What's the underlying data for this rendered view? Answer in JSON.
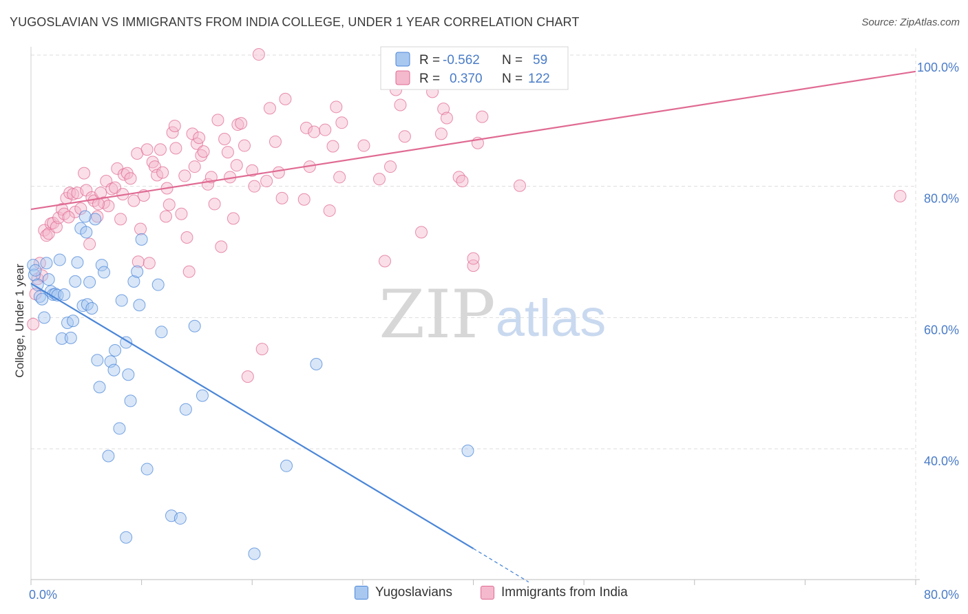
{
  "header": {
    "title": "YUGOSLAVIAN VS IMMIGRANTS FROM INDIA COLLEGE, UNDER 1 YEAR CORRELATION CHART",
    "source": "Source: ZipAtlas.com"
  },
  "watermark": {
    "zip": "ZIP",
    "atlas": "atlas"
  },
  "colors": {
    "blue": "#4a86d8",
    "blue_fill": "#a9c8f0",
    "pink": "#e06a93",
    "pink_fill": "#f4b9cc",
    "axis_text": "#4a7cc7",
    "grid": "#dddddd"
  },
  "legend_top": {
    "rows": [
      {
        "r_label": "R =",
        "r_value": "-0.562",
        "n_label": "N =",
        "n_value": "59"
      },
      {
        "r_label": "R =",
        "r_value": "0.370",
        "n_label": "N =",
        "n_value": "122"
      }
    ]
  },
  "legend_bottom": [
    {
      "label": "Yugoslavians"
    },
    {
      "label": "Immigrants from India"
    }
  ],
  "chart_data": {
    "type": "scatter",
    "title": "YUGOSLAVIAN VS IMMIGRANTS FROM INDIA COLLEGE, UNDER 1 YEAR CORRELATION CHART",
    "xlabel": "",
    "ylabel": "College, Under 1 year",
    "xlim": [
      0,
      80
    ],
    "ylim": [
      20,
      102
    ],
    "x_tick_labels": [
      {
        "value": 0,
        "label": "0.0%"
      },
      {
        "value": 80,
        "label": "80.0%"
      }
    ],
    "y_tick_labels": [
      {
        "value": 40,
        "label": "40.0%"
      },
      {
        "value": 60,
        "label": "60.0%"
      },
      {
        "value": 80,
        "label": "80.0%"
      },
      {
        "value": 100,
        "label": "100.0%"
      }
    ],
    "legend_position": "top-center",
    "grid": true,
    "series": [
      {
        "name": "Yugoslavians",
        "color": "#4a86d8",
        "r": -0.562,
        "n": 59,
        "trend": {
          "x0": 0,
          "y0": 65.2,
          "x1": 40,
          "y1": 24.8,
          "dashed_to_x": 45,
          "dashed_to_y": 19.7
        },
        "points": [
          [
            0.2,
            68.0
          ],
          [
            0.3,
            66.5
          ],
          [
            0.4,
            67.2
          ],
          [
            0.6,
            65.0
          ],
          [
            0.8,
            63.2
          ],
          [
            1.0,
            62.8
          ],
          [
            1.2,
            60.0
          ],
          [
            1.4,
            68.3
          ],
          [
            1.6,
            65.8
          ],
          [
            1.8,
            64.0
          ],
          [
            2.0,
            63.5
          ],
          [
            2.2,
            63.6
          ],
          [
            2.4,
            63.4
          ],
          [
            2.6,
            68.8
          ],
          [
            2.8,
            56.8
          ],
          [
            3.0,
            63.5
          ],
          [
            3.3,
            59.2
          ],
          [
            3.6,
            56.9
          ],
          [
            3.8,
            59.5
          ],
          [
            4.0,
            65.5
          ],
          [
            4.2,
            68.4
          ],
          [
            4.5,
            73.6
          ],
          [
            4.7,
            61.8
          ],
          [
            5.0,
            73.0
          ],
          [
            5.1,
            62.0
          ],
          [
            5.3,
            65.4
          ],
          [
            5.5,
            61.4
          ],
          [
            5.8,
            75.0
          ],
          [
            6.0,
            53.5
          ],
          [
            6.2,
            49.4
          ],
          [
            6.4,
            68.0
          ],
          [
            6.6,
            66.9
          ],
          [
            7.0,
            38.9
          ],
          [
            7.2,
            53.3
          ],
          [
            7.5,
            52.0
          ],
          [
            7.6,
            55.0
          ],
          [
            8.0,
            43.1
          ],
          [
            8.2,
            62.6
          ],
          [
            8.6,
            56.2
          ],
          [
            8.8,
            51.3
          ],
          [
            9.0,
            47.3
          ],
          [
            9.3,
            65.5
          ],
          [
            9.6,
            67.0
          ],
          [
            9.8,
            61.9
          ],
          [
            10.0,
            71.9
          ],
          [
            10.5,
            36.9
          ],
          [
            11.5,
            65.0
          ],
          [
            11.8,
            57.8
          ],
          [
            12.7,
            29.8
          ],
          [
            13.5,
            29.4
          ],
          [
            14.0,
            46.0
          ],
          [
            14.8,
            58.7
          ],
          [
            15.5,
            48.1
          ],
          [
            20.2,
            24.0
          ],
          [
            23.1,
            37.4
          ],
          [
            25.8,
            52.9
          ],
          [
            39.5,
            39.7
          ],
          [
            8.6,
            26.5
          ],
          [
            4.9,
            75.4
          ]
        ]
      },
      {
        "name": "Immigrants from India",
        "color": "#e06a93",
        "r": 0.37,
        "n": 122,
        "trend": {
          "x0": 0,
          "y0": 76.5,
          "x1": 80,
          "y1": 97.5
        },
        "points": [
          [
            0.2,
            59.0
          ],
          [
            0.4,
            63.6
          ],
          [
            0.6,
            65.9
          ],
          [
            0.8,
            68.3
          ],
          [
            1.0,
            66.4
          ],
          [
            1.2,
            73.3
          ],
          [
            1.4,
            72.5
          ],
          [
            1.6,
            72.8
          ],
          [
            1.8,
            74.3
          ],
          [
            2.0,
            74.4
          ],
          [
            2.3,
            73.8
          ],
          [
            2.5,
            75.2
          ],
          [
            2.8,
            76.5
          ],
          [
            3.0,
            75.8
          ],
          [
            3.2,
            78.2
          ],
          [
            3.5,
            79.0
          ],
          [
            3.8,
            78.8
          ],
          [
            4.0,
            76.1
          ],
          [
            4.2,
            79.0
          ],
          [
            4.5,
            76.6
          ],
          [
            4.8,
            82.0
          ],
          [
            5.0,
            79.4
          ],
          [
            5.3,
            71.2
          ],
          [
            5.5,
            78.3
          ],
          [
            5.7,
            77.8
          ],
          [
            6.0,
            75.4
          ],
          [
            6.3,
            79.0
          ],
          [
            6.6,
            77.5
          ],
          [
            6.8,
            80.8
          ],
          [
            7.0,
            77.0
          ],
          [
            7.3,
            79.6
          ],
          [
            7.6,
            79.8
          ],
          [
            7.8,
            82.7
          ],
          [
            8.1,
            75.0
          ],
          [
            8.4,
            81.8
          ],
          [
            8.7,
            82.0
          ],
          [
            9.0,
            81.2
          ],
          [
            9.3,
            77.8
          ],
          [
            9.6,
            85.0
          ],
          [
            9.7,
            68.5
          ],
          [
            9.9,
            73.5
          ],
          [
            10.2,
            78.6
          ],
          [
            10.5,
            85.6
          ],
          [
            10.7,
            68.3
          ],
          [
            11.0,
            83.7
          ],
          [
            11.2,
            83.0
          ],
          [
            11.4,
            81.7
          ],
          [
            11.7,
            85.6
          ],
          [
            11.9,
            82.1
          ],
          [
            12.2,
            75.4
          ],
          [
            12.5,
            77.2
          ],
          [
            12.8,
            88.2
          ],
          [
            13.0,
            89.2
          ],
          [
            13.1,
            85.8
          ],
          [
            13.6,
            75.8
          ],
          [
            13.9,
            81.6
          ],
          [
            14.1,
            72.2
          ],
          [
            14.3,
            67.0
          ],
          [
            14.6,
            88.0
          ],
          [
            14.8,
            83.0
          ],
          [
            15.0,
            86.5
          ],
          [
            15.2,
            87.4
          ],
          [
            15.4,
            84.7
          ],
          [
            15.6,
            85.3
          ],
          [
            16.0,
            80.3
          ],
          [
            16.3,
            81.4
          ],
          [
            16.6,
            77.3
          ],
          [
            16.9,
            90.1
          ],
          [
            17.2,
            70.8
          ],
          [
            17.5,
            87.2
          ],
          [
            17.8,
            85.2
          ],
          [
            18.0,
            81.4
          ],
          [
            18.3,
            75.1
          ],
          [
            18.7,
            89.4
          ],
          [
            19.0,
            89.6
          ],
          [
            19.3,
            86.2
          ],
          [
            19.6,
            51.0
          ],
          [
            20.0,
            82.4
          ],
          [
            20.2,
            80.0
          ],
          [
            20.6,
            100.1
          ],
          [
            20.9,
            55.2
          ],
          [
            21.3,
            80.8
          ],
          [
            21.6,
            91.9
          ],
          [
            22.1,
            86.8
          ],
          [
            22.4,
            82.1
          ],
          [
            22.7,
            78.2
          ],
          [
            23.0,
            93.3
          ],
          [
            24.7,
            78.0
          ],
          [
            24.9,
            88.9
          ],
          [
            25.2,
            83.0
          ],
          [
            25.6,
            88.3
          ],
          [
            26.6,
            88.6
          ],
          [
            27.0,
            76.3
          ],
          [
            27.3,
            86.1
          ],
          [
            27.6,
            92.1
          ],
          [
            27.9,
            81.4
          ],
          [
            28.1,
            89.7
          ],
          [
            30.1,
            86.2
          ],
          [
            31.5,
            81.1
          ],
          [
            32.0,
            68.6
          ],
          [
            32.5,
            83.0
          ],
          [
            33.0,
            94.7
          ],
          [
            33.4,
            92.4
          ],
          [
            33.8,
            87.6
          ],
          [
            35.3,
            73.0
          ],
          [
            36.3,
            94.4
          ],
          [
            37.1,
            88.0
          ],
          [
            37.3,
            91.8
          ],
          [
            37.6,
            90.4
          ],
          [
            38.7,
            81.4
          ],
          [
            39.0,
            80.8
          ],
          [
            40.0,
            67.9
          ],
          [
            40.4,
            86.6
          ],
          [
            40.8,
            90.6
          ],
          [
            40.0,
            69.0
          ],
          [
            44.2,
            80.1
          ],
          [
            78.6,
            78.5
          ],
          [
            8.3,
            78.8
          ],
          [
            12.3,
            79.7
          ],
          [
            6.1,
            77.3
          ],
          [
            3.4,
            75.3
          ],
          [
            18.6,
            83.2
          ]
        ]
      }
    ]
  }
}
